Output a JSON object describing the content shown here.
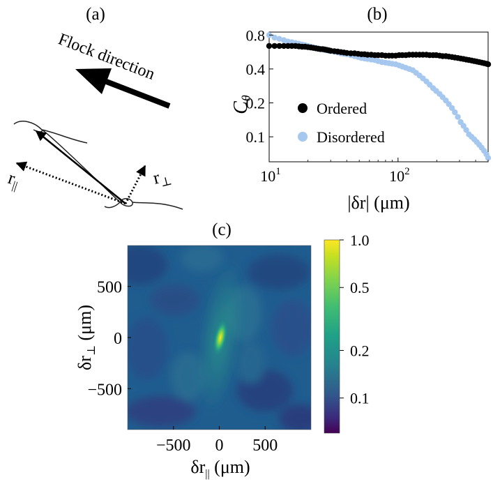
{
  "panels": {
    "a": {
      "label": "(a)",
      "arrow_text": "Flock direction",
      "r_parallel": "r",
      "r_parallel_sub": "||",
      "r_perp": "r",
      "r_perp_sub": "⊥"
    },
    "b": {
      "label": "(b)"
    },
    "c": {
      "label": "(c)"
    }
  },
  "colors": {
    "ordered": "#000000",
    "disordered": "#a6c8ef",
    "axis": "#000000"
  },
  "chart_data": [
    {
      "id": "b",
      "type": "scatter",
      "xscale": "log",
      "yscale": "log",
      "xlim": [
        10,
        500
      ],
      "ylim": [
        0.06,
        0.85
      ],
      "xlabel": "|δr| (μm)",
      "ylabel": "Cθ",
      "ylabel_main": "C",
      "ylabel_sub": "θ",
      "xticks": [
        10,
        100
      ],
      "xtick_labels": [
        {
          "base": "10",
          "exp": "1"
        },
        {
          "base": "10",
          "exp": "2"
        }
      ],
      "yticks": [
        0.1,
        0.2,
        0.4,
        0.8
      ],
      "ytick_labels": [
        "0.1",
        "0.2",
        "0.4",
        "0.8"
      ],
      "legend_placement": "lower-left",
      "series": [
        {
          "name": "Ordered",
          "x": [
            10,
            11,
            12,
            13,
            14,
            15,
            16,
            17,
            18,
            19,
            20,
            21,
            22,
            23,
            24,
            25,
            26,
            27,
            28,
            29,
            30,
            32,
            34,
            36,
            38,
            40,
            43,
            46,
            49,
            52,
            55,
            58,
            62,
            66,
            70,
            75,
            80,
            85,
            90,
            96,
            102,
            108,
            115,
            122,
            130,
            138,
            147,
            156,
            166,
            176,
            187,
            198,
            210,
            222,
            235,
            248,
            262,
            276,
            291,
            306,
            322,
            338,
            355,
            372,
            390,
            408,
            427,
            446,
            465,
            485,
            500
          ],
          "y": [
            0.64,
            0.64,
            0.64,
            0.64,
            0.64,
            0.64,
            0.64,
            0.635,
            0.63,
            0.63,
            0.625,
            0.62,
            0.615,
            0.61,
            0.605,
            0.6,
            0.6,
            0.595,
            0.59,
            0.585,
            0.58,
            0.575,
            0.57,
            0.565,
            0.56,
            0.555,
            0.55,
            0.55,
            0.545,
            0.54,
            0.54,
            0.535,
            0.535,
            0.53,
            0.53,
            0.53,
            0.525,
            0.525,
            0.525,
            0.525,
            0.53,
            0.53,
            0.53,
            0.535,
            0.535,
            0.535,
            0.535,
            0.535,
            0.535,
            0.53,
            0.53,
            0.53,
            0.525,
            0.52,
            0.52,
            0.515,
            0.51,
            0.505,
            0.5,
            0.495,
            0.49,
            0.485,
            0.48,
            0.475,
            0.47,
            0.465,
            0.46,
            0.455,
            0.45,
            0.445,
            0.44
          ]
        },
        {
          "name": "Disordered",
          "x": [
            10,
            11,
            12,
            13,
            14,
            15,
            16,
            17,
            18,
            19,
            20,
            21,
            22,
            23,
            24,
            25,
            26,
            27,
            28,
            29,
            30,
            32,
            34,
            36,
            38,
            40,
            43,
            46,
            49,
            52,
            55,
            58,
            62,
            66,
            70,
            75,
            80,
            85,
            90,
            96,
            102,
            108,
            115,
            122,
            130,
            138,
            147,
            156,
            166,
            176,
            187,
            198,
            210,
            222,
            235,
            248,
            262,
            276,
            291,
            306,
            322,
            338,
            355,
            372,
            390,
            408,
            427,
            446,
            465,
            485,
            500
          ],
          "y": [
            0.8,
            0.76,
            0.74,
            0.72,
            0.7,
            0.69,
            0.68,
            0.67,
            0.66,
            0.65,
            0.64,
            0.63,
            0.62,
            0.615,
            0.61,
            0.6,
            0.595,
            0.59,
            0.585,
            0.58,
            0.575,
            0.57,
            0.56,
            0.55,
            0.545,
            0.54,
            0.53,
            0.52,
            0.51,
            0.5,
            0.495,
            0.49,
            0.485,
            0.48,
            0.47,
            0.46,
            0.455,
            0.45,
            0.445,
            0.44,
            0.43,
            0.42,
            0.41,
            0.4,
            0.39,
            0.37,
            0.35,
            0.33,
            0.31,
            0.29,
            0.27,
            0.255,
            0.24,
            0.225,
            0.21,
            0.195,
            0.18,
            0.165,
            0.15,
            0.135,
            0.125,
            0.115,
            0.105,
            0.1,
            0.095,
            0.09,
            0.085,
            0.08,
            0.075,
            0.07,
            0.065
          ]
        }
      ]
    },
    {
      "id": "c",
      "type": "heatmap",
      "xlim": [
        -1000,
        1000
      ],
      "ylim": [
        -900,
        900
      ],
      "xticks": [
        -500,
        0,
        500
      ],
      "yticks": [
        500,
        0,
        -500
      ],
      "xtick_labels": [
        "−500",
        "0",
        "500"
      ],
      "ytick_labels": [
        "500",
        "0",
        "−500"
      ],
      "xlabel": "δr|| (μm)",
      "xlabel_main": "δr",
      "xlabel_sub": "||",
      "xlabel_unit": "(μm)",
      "ylabel": "δr⊥ (μm)",
      "ylabel_main": "δr",
      "ylabel_sub": "⊥",
      "ylabel_unit": "(μm)",
      "colorscale": "viridis",
      "colorbar_ticks": [
        1.0,
        0.5,
        0.2,
        0.1
      ],
      "colorbar_labels": [
        "1.0",
        "0.5",
        "0.2",
        "0.1"
      ],
      "color_min": 0.06,
      "color_max": 1.0,
      "peak": {
        "x": 0,
        "y": 0,
        "value": 1.0
      },
      "background_level": 0.09
    }
  ]
}
